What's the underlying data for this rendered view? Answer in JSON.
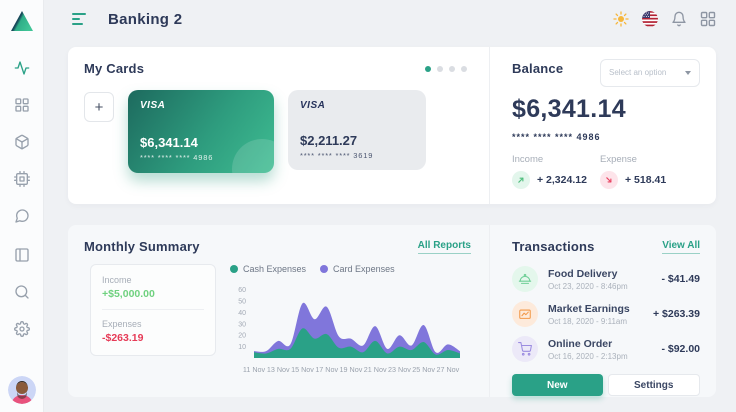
{
  "app": {
    "title": "Banking 2"
  },
  "header": {
    "icons": [
      "sun-icon",
      "us-flag-icon",
      "bell-icon",
      "apps-grid-icon"
    ]
  },
  "sidebar": {
    "top_icons": [
      "activity-icon",
      "dashboard-grid-icon",
      "box-icon",
      "cpu-icon",
      "chat-icon"
    ],
    "bottom_icons": [
      "layout-sidebar-icon",
      "search-icon",
      "gear-icon"
    ],
    "active_icon": "activity-icon"
  },
  "colors": {
    "accent_green": "#2aa187",
    "chart_purple": "#8076db",
    "positive_green": "#6fd17f",
    "negative_red": "#e63b57",
    "text_dark": "#2e3a59"
  },
  "my_cards": {
    "title": "My Cards",
    "add_label": "+",
    "dots_total": 4,
    "active_dot": 0,
    "cards": [
      {
        "brand": "VISA",
        "balance": "$6,341.14",
        "number": "**** **** **** 4986",
        "style": "green"
      },
      {
        "brand": "VISA",
        "balance": "$2,211.27",
        "number": "**** **** **** 3619",
        "style": "gray"
      }
    ]
  },
  "balance": {
    "title": "Balance",
    "dropdown_placeholder": "Select an option",
    "amount": "$6,341.14",
    "card_number": "**** **** **** 4986",
    "income_label": "Income",
    "income_value": "+ 2,324.12",
    "expense_label": "Expense",
    "expense_value": "+ 518.41"
  },
  "monthly_summary": {
    "title": "Monthly Summary",
    "link": "All Reports",
    "income_label": "Income",
    "income_value": "+$5,000.00",
    "expenses_label": "Expenses",
    "expenses_value": "-$263.19"
  },
  "chart_data": {
    "type": "area",
    "stacked": true,
    "legend_position": "top",
    "grid": false,
    "x_days": [
      "11",
      "12",
      "13",
      "14",
      "15",
      "16",
      "17",
      "18",
      "19",
      "20",
      "21",
      "22",
      "23",
      "24",
      "25",
      "26",
      "27",
      "28"
    ],
    "x_tick_labels": [
      "11 Nov",
      "13 Nov",
      "15 Nov",
      "17 Nov",
      "19 Nov",
      "21 Nov",
      "23 Nov",
      "25 Nov",
      "27 Nov"
    ],
    "y_ticks": [
      10,
      20,
      30,
      40,
      50,
      60
    ],
    "ylim": [
      0,
      65
    ],
    "series": [
      {
        "name": "Cash Expenses",
        "color": "#2aa187",
        "values": [
          5,
          4,
          8,
          8,
          26,
          17,
          21,
          9,
          10,
          5,
          15,
          4,
          10,
          7,
          14,
          3,
          7,
          4
        ]
      },
      {
        "name": "Card Expenses",
        "color": "#8076db",
        "values": [
          1,
          2,
          7,
          4,
          22,
          17,
          24,
          10,
          7,
          6,
          13,
          4,
          10,
          4,
          15,
          2,
          5,
          2
        ]
      }
    ]
  },
  "transactions": {
    "title": "Transactions",
    "link": "View All",
    "items": [
      {
        "title": "Food Delivery",
        "date": "Oct 23, 2020 - 8:46pm",
        "amount": "- $41.49",
        "icon": "food-dome-icon"
      },
      {
        "title": "Market Earnings",
        "date": "Oct 18, 2020 - 9:11am",
        "amount": "+ $263.39",
        "icon": "market-chart-icon"
      },
      {
        "title": "Online Order",
        "date": "Oct 16, 2020 - 2:13pm",
        "amount": "- $92.00",
        "icon": "shopping-cart-icon"
      }
    ],
    "new_label": "New",
    "settings_label": "Settings"
  }
}
